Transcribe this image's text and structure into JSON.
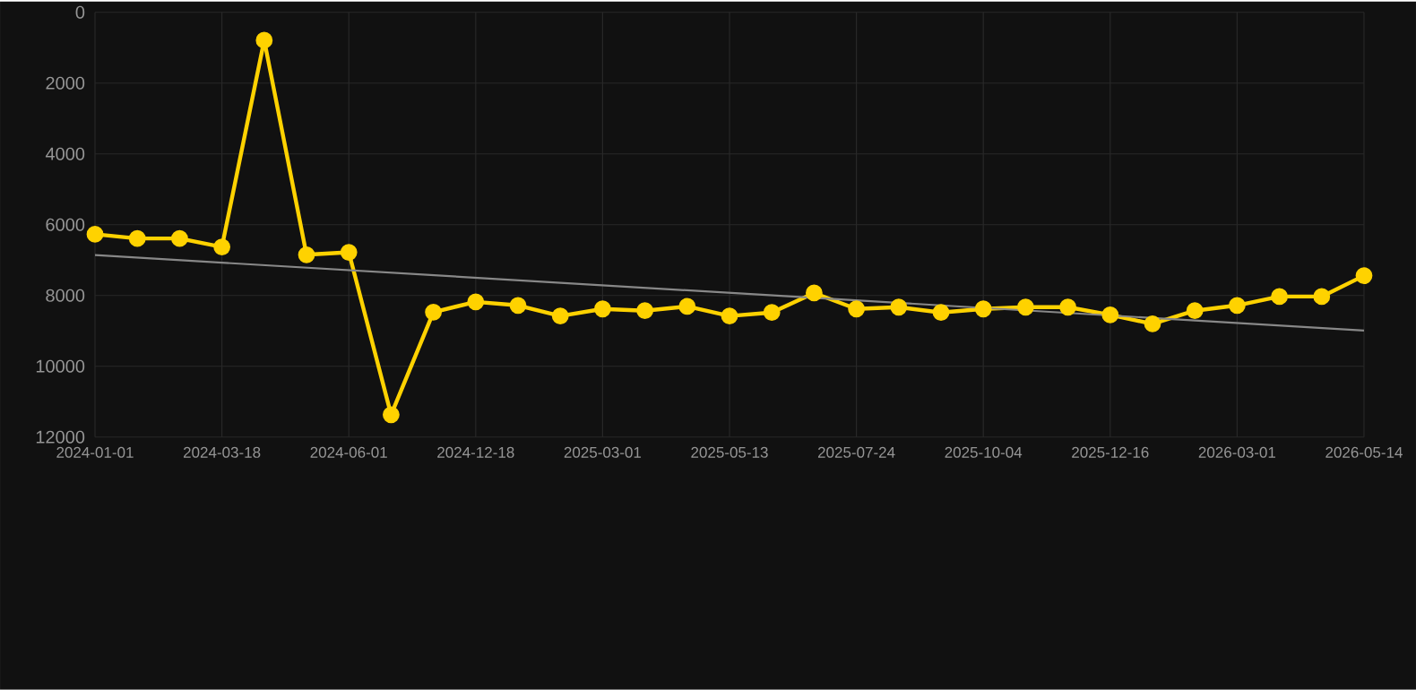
{
  "chart_data": {
    "type": "line",
    "categories": [
      "2024-01-01",
      null,
      null,
      "2024-03-18",
      null,
      null,
      "2024-06-01",
      null,
      null,
      "2024-12-18",
      null,
      null,
      "2025-03-01",
      null,
      null,
      "2025-05-13",
      null,
      null,
      "2025-07-24",
      null,
      null,
      "2025-10-04",
      null,
      null,
      "2025-12-16",
      null,
      null,
      "2026-03-01",
      null,
      null,
      "2026-05-14"
    ],
    "series": [
      {
        "color": "#ffd200",
        "marker": "circle",
        "values": [
          6270,
          6390,
          6390,
          6630,
          790,
          6850,
          6780,
          11370,
          8470,
          8180,
          8280,
          8580,
          8380,
          8430,
          8310,
          8580,
          8480,
          7930,
          8380,
          8330,
          8480,
          8380,
          8330,
          8330,
          8550,
          8800,
          8430,
          8280,
          8030,
          8030,
          7440
        ]
      },
      {
        "type": "line",
        "color": "#888888",
        "marker": "none",
        "values": [
          6860,
          null,
          null,
          null,
          null,
          null,
          null,
          null,
          null,
          null,
          null,
          null,
          null,
          null,
          null,
          null,
          null,
          null,
          null,
          null,
          null,
          null,
          null,
          null,
          null,
          null,
          null,
          null,
          null,
          null,
          8990
        ]
      }
    ],
    "ylim": [
      12000,
      0
    ],
    "yticks": [
      0,
      2000,
      4000,
      6000,
      8000,
      10000,
      12000
    ],
    "grid": true
  }
}
